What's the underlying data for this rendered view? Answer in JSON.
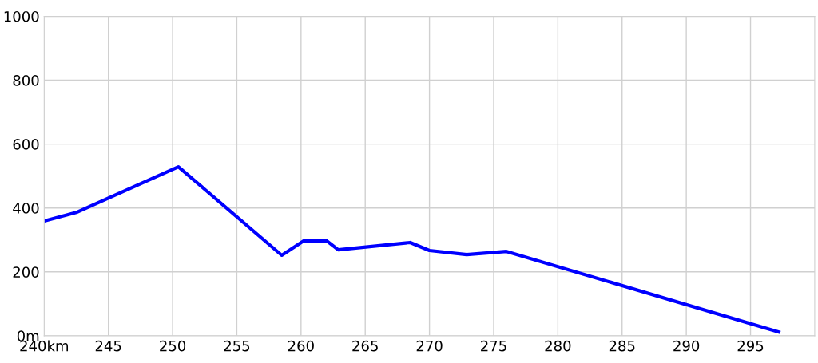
{
  "chart_data": {
    "type": "line",
    "x": [
      240,
      242.5,
      250.45,
      258.5,
      260.2,
      262.0,
      262.9,
      268.5,
      270.0,
      272.9,
      276.0,
      297.2
    ],
    "series": [
      {
        "color": "#0000ff",
        "values": [
          359,
          386,
          529,
          252,
          297,
          297,
          269,
          292,
          267,
          254,
          264,
          12
        ]
      }
    ],
    "xlim": [
      240,
      300
    ],
    "xticks": [
      {
        "value": 240,
        "label": "240km"
      },
      245,
      250,
      255,
      260,
      265,
      270,
      275,
      280,
      285,
      290,
      295
    ],
    "ylim": [
      0,
      1000
    ],
    "yticks": [
      {
        "value": 0,
        "label": "0m"
      },
      200,
      400,
      600,
      800,
      1000
    ],
    "grid": true,
    "marker": "none",
    "line_style": "solid",
    "legend": false
  }
}
